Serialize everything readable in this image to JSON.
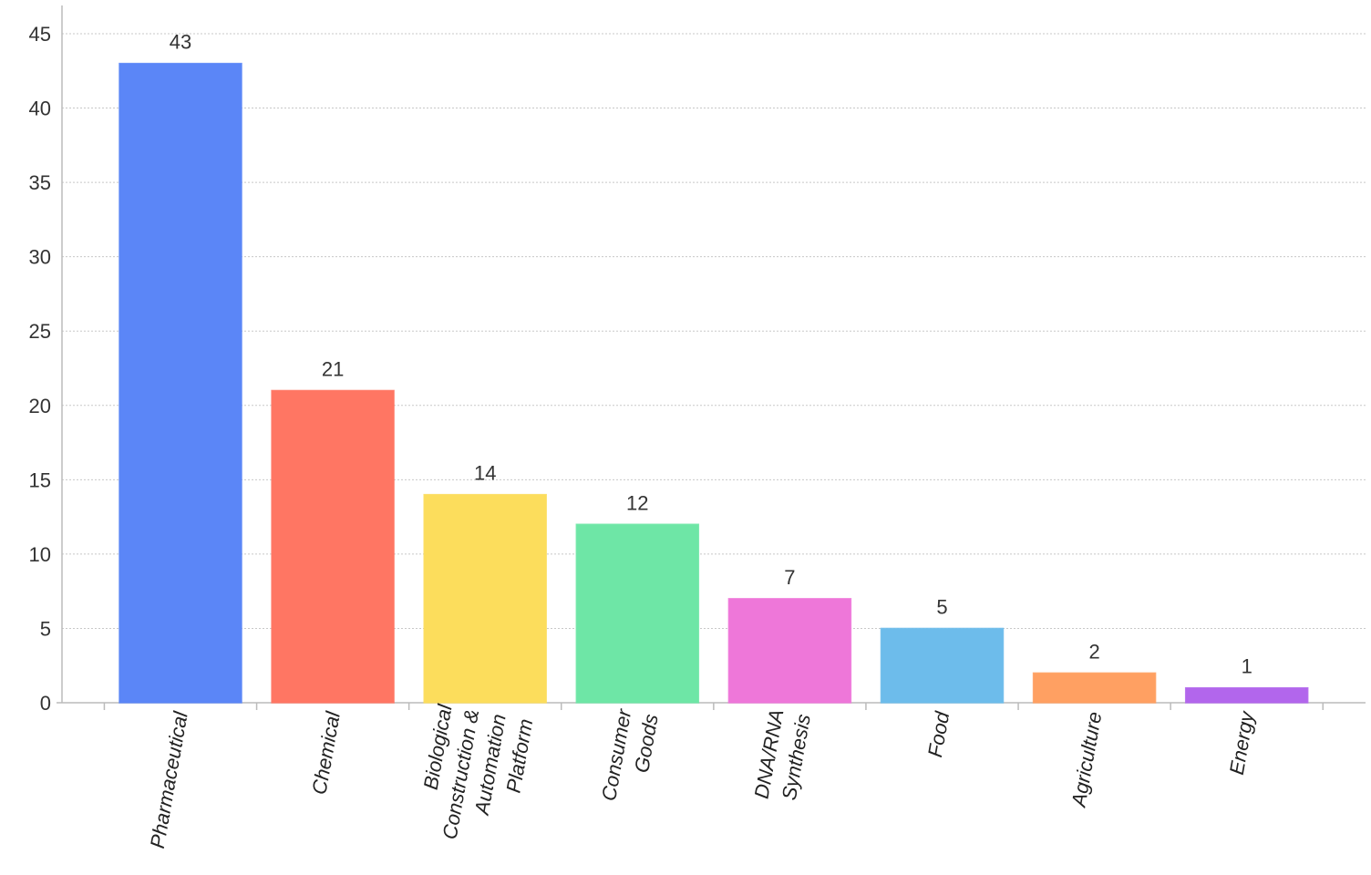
{
  "chart_data": {
    "type": "bar",
    "title": "",
    "xlabel": "",
    "ylabel": "",
    "ylim": [
      0,
      45
    ],
    "yticks": [
      0,
      5,
      10,
      15,
      20,
      25,
      30,
      35,
      40,
      45
    ],
    "grid": true,
    "legend": "none",
    "categories": [
      [
        "Pharmaceutical"
      ],
      [
        "Chemical"
      ],
      [
        "Biological",
        "Construction &",
        "Automation",
        "Platform"
      ],
      [
        "Consumer",
        "Goods"
      ],
      [
        "DNA/RNA",
        "Synthesis"
      ],
      [
        "Food"
      ],
      [
        "Agriculture"
      ],
      [
        "Energy"
      ]
    ],
    "values": [
      43,
      21,
      14,
      12,
      7,
      5,
      2,
      1
    ],
    "colors": [
      "#5B86F7",
      "#FF7663",
      "#FCDD5C",
      "#6EE6A6",
      "#EE77D9",
      "#6DBCEB",
      "#FFA062",
      "#B266EC"
    ]
  }
}
